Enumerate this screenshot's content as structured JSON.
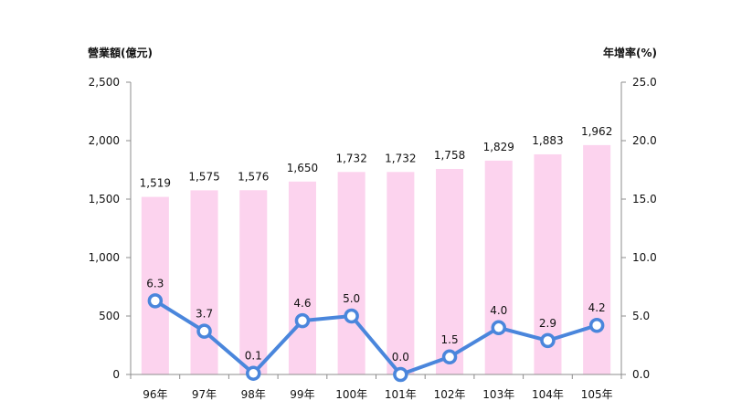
{
  "chart_data": {
    "type": "bar",
    "title": "",
    "categories": [
      "96年",
      "97年",
      "98年",
      "99年",
      "100年",
      "101年",
      "102年",
      "103年",
      "104年",
      "105年"
    ],
    "series": [
      {
        "type": "bar",
        "axis": "left",
        "color": "#fcd3ee",
        "values": [
          1519,
          1575,
          1576,
          1650,
          1732,
          1732,
          1758,
          1829,
          1883,
          1962
        ],
        "value_labels": [
          "1,519",
          "1,575",
          "1,576",
          "1,650",
          "1,732",
          "1,732",
          "1,758",
          "1,829",
          "1,883",
          "1,962"
        ]
      },
      {
        "type": "line",
        "axis": "right",
        "color": "#4a86dc",
        "values": [
          6.3,
          3.7,
          0.1,
          4.6,
          5.0,
          0.0,
          1.5,
          4.0,
          2.9,
          4.2
        ],
        "value_labels": [
          "6.3",
          "3.7",
          "0.1",
          "4.6",
          "5.0",
          "0.0",
          "1.5",
          "4.0",
          "2.9",
          "4.2"
        ]
      }
    ],
    "y_left": {
      "label": "營業額(億元)",
      "min": 0,
      "max": 2500,
      "ticks": [
        0,
        500,
        1000,
        1500,
        2000,
        2500
      ],
      "tick_labels": [
        "0",
        "500",
        "1,000",
        "1,500",
        "2,000",
        "2,500"
      ]
    },
    "y_right": {
      "label": "年增率(%)",
      "min": 0,
      "max": 25,
      "ticks": [
        0,
        5,
        10,
        15,
        20,
        25
      ],
      "tick_labels": [
        "0.0",
        "5.0",
        "10.0",
        "15.0",
        "20.0",
        "25.0"
      ]
    },
    "grid": false,
    "legend": "none"
  }
}
